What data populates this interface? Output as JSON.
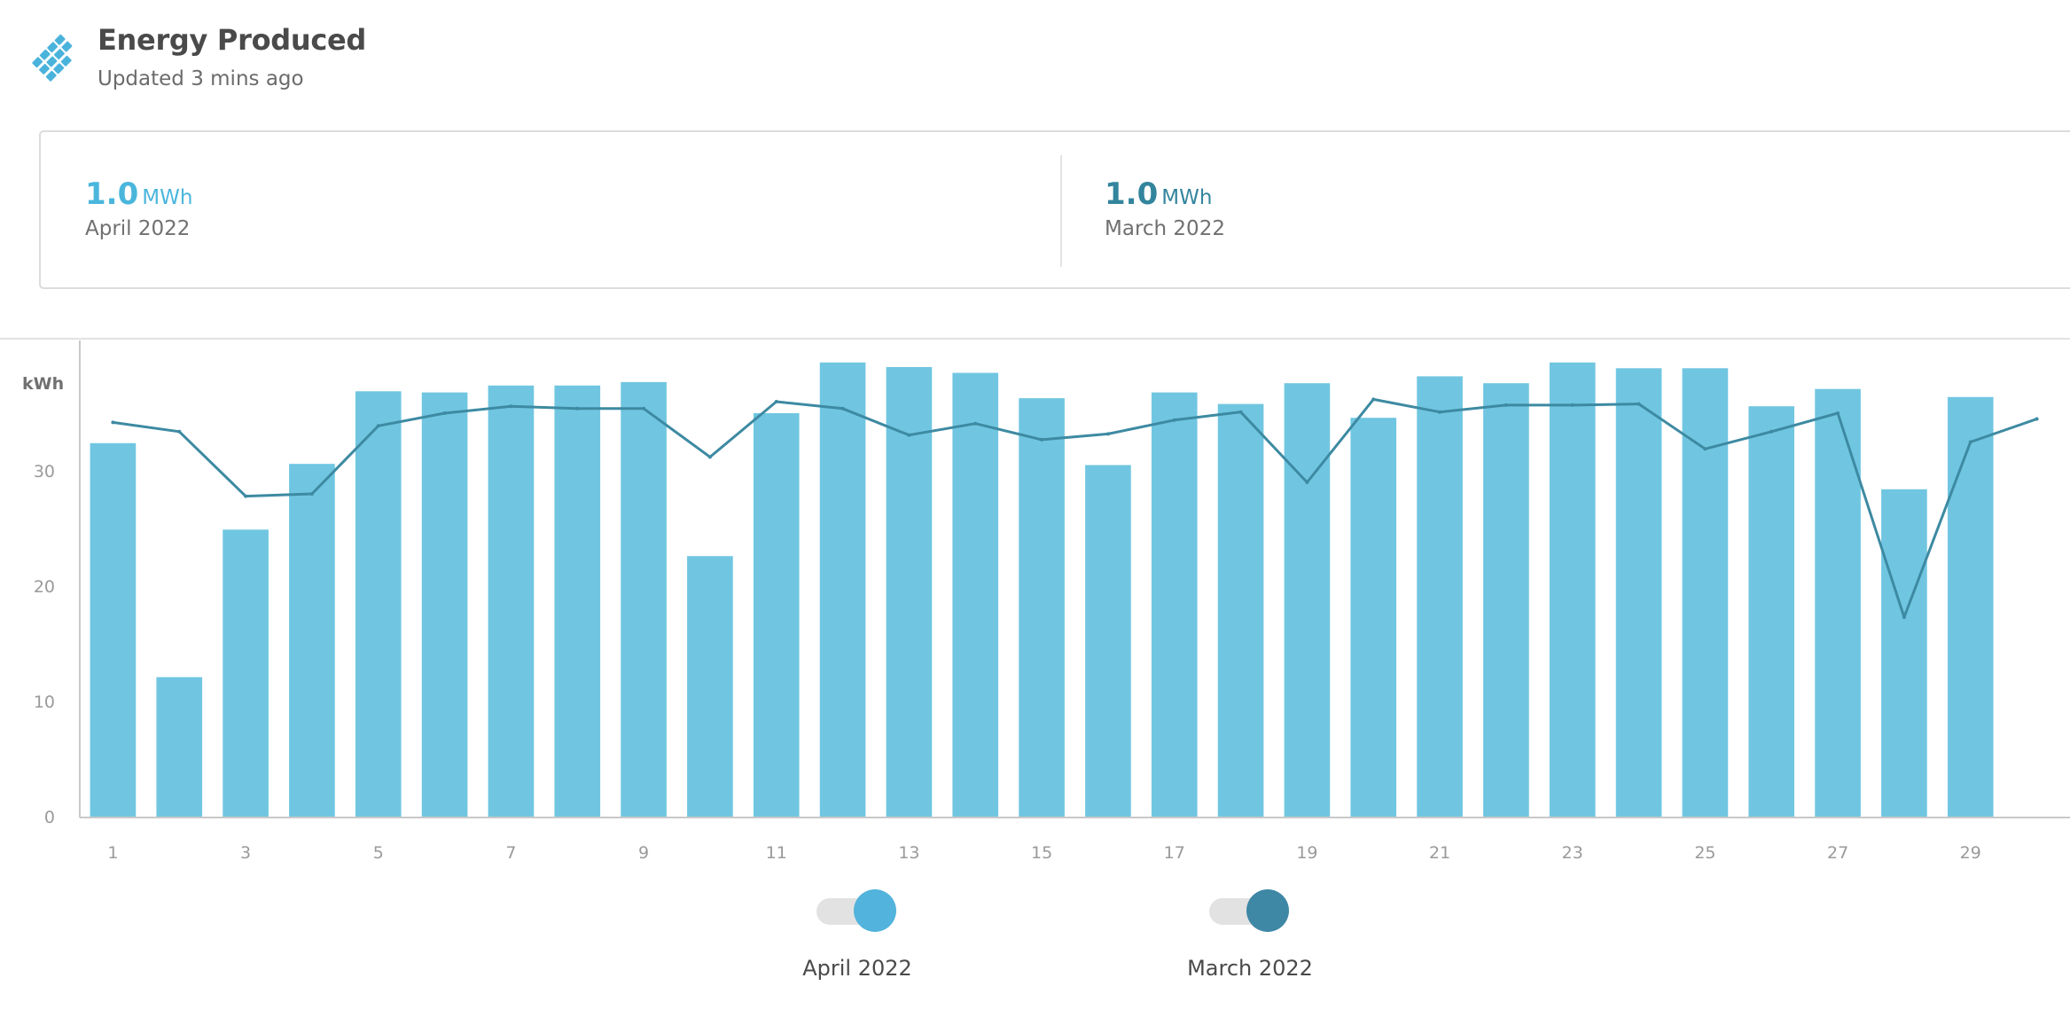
{
  "header": {
    "title": "Energy Produced",
    "subtitle": "Updated 3 mins ago",
    "icon": "solar-panel-icon"
  },
  "summary": [
    {
      "value": "1.0",
      "unit": "MWh",
      "period": "April 2022",
      "color": "#4ab6dc"
    },
    {
      "value": "1.0",
      "unit": "MWh",
      "period": "March 2022",
      "color": "#33859d"
    }
  ],
  "chart_data": {
    "type": "bar",
    "ylabel": "kWh",
    "ylim": [
      0,
      40
    ],
    "yticks": [
      0,
      10,
      20,
      30
    ],
    "xlim": [
      0.5,
      30.5
    ],
    "xticks": [
      1,
      3,
      5,
      7,
      9,
      11,
      13,
      15,
      17,
      19,
      21,
      23,
      25,
      27,
      29
    ],
    "x": [
      1,
      2,
      3,
      4,
      5,
      6,
      7,
      8,
      9,
      10,
      11,
      12,
      13,
      14,
      15,
      16,
      17,
      18,
      19,
      20,
      21,
      22,
      23,
      24,
      25,
      26,
      27,
      28,
      29,
      30
    ],
    "grid": false,
    "series": [
      {
        "name": "April 2022",
        "type": "bar",
        "color": "#70c6e1",
        "values": [
          32.4,
          12.1,
          24.9,
          30.6,
          36.9,
          36.8,
          37.4,
          37.4,
          37.7,
          22.6,
          35.0,
          39.4,
          39.0,
          38.5,
          36.3,
          30.5,
          36.8,
          35.8,
          37.6,
          34.6,
          38.2,
          37.6,
          39.4,
          38.9,
          38.9,
          35.6,
          37.1,
          28.4,
          36.4,
          null
        ]
      },
      {
        "name": "March 2022",
        "type": "line",
        "color": "#3d8aa2",
        "values": [
          34.2,
          33.4,
          27.8,
          28.0,
          33.9,
          35.0,
          35.6,
          35.4,
          35.4,
          31.2,
          36.0,
          35.4,
          33.1,
          34.1,
          32.7,
          33.2,
          34.4,
          35.1,
          29.0,
          36.2,
          35.1,
          35.7,
          35.7,
          35.8,
          31.9,
          33.4,
          35.0,
          17.3,
          32.5,
          34.5
        ]
      }
    ]
  },
  "legend": [
    {
      "label": "April 2022",
      "color": "#52b3dc",
      "enabled": true
    },
    {
      "label": "March 2022",
      "color": "#3e87a5",
      "enabled": true
    }
  ]
}
